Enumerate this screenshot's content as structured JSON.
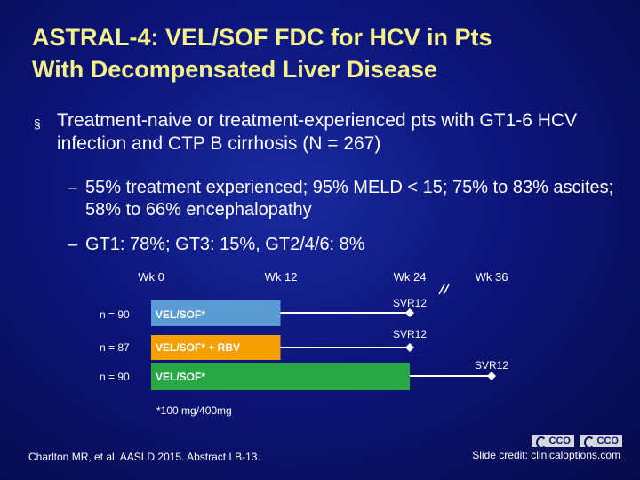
{
  "title": {
    "line1": "ASTRAL-4: VEL/SOF FDC for HCV in Pts",
    "line2": "With Decompensated Liver Disease"
  },
  "bullet": {
    "marker": "§",
    "text": "Treatment-naive or treatment-experienced pts with GT1-6 HCV infection and CTP B cirrhosis (N = 267)"
  },
  "subbullets": [
    {
      "dash": "–",
      "text": "55% treatment experienced; 95% MELD < 15; 75% to 83% ascites; 58% to 66% encephalopathy"
    },
    {
      "dash": "–",
      "text": "GT1: 78%; GT3: 15%, GT2/4/6: 8%"
    }
  ],
  "diagram": {
    "weeks": [
      "Wk 0",
      "Wk 12",
      "Wk 24",
      "Wk 36"
    ],
    "arms": [
      {
        "n_label": "n = 90",
        "treatment": "VEL/SOF*",
        "duration_weeks": 12,
        "followup_to_week": 24,
        "endpoint": "SVR12",
        "color": "#5b9bd5"
      },
      {
        "n_label": "n = 87",
        "treatment": "VEL/SOF* + RBV",
        "duration_weeks": 12,
        "followup_to_week": 24,
        "endpoint": "SVR12",
        "color": "#f5a000"
      },
      {
        "n_label": "n = 90",
        "treatment": "VEL/SOF*",
        "duration_weeks": 24,
        "followup_to_week": 36,
        "endpoint": "SVR12",
        "color": "#27a844"
      }
    ],
    "footnote": "*100 mg/400mg"
  },
  "footer": {
    "citation": "Charlton MR, et al. AASLD 2015. Abstract LB-13.",
    "credit_prefix": "Slide credit: ",
    "credit_link": "clinicaloptions.com",
    "logo1": "CCO",
    "logo2": "CCO"
  }
}
